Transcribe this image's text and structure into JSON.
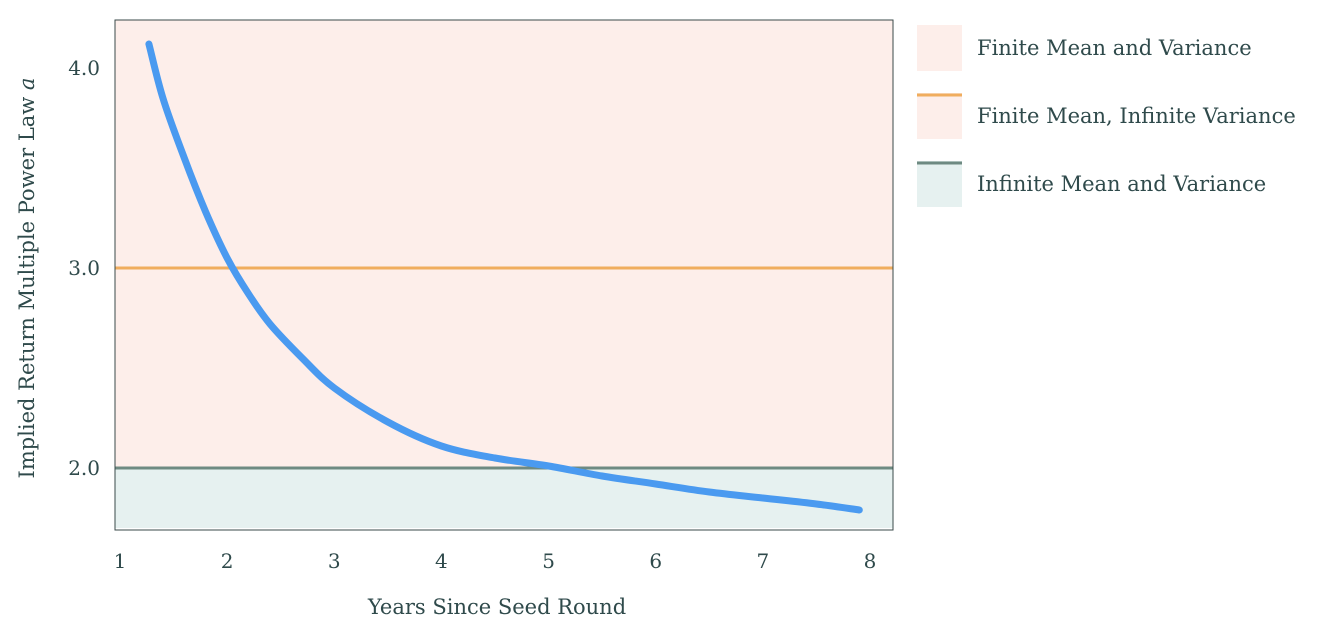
{
  "chart_data": {
    "type": "line",
    "xlabel": "Years Since Seed Round",
    "ylabel": "Implied Return Multiple Power Law a",
    "ylabel_main": "Implied Return Multiple Power Law ",
    "ylabel_symbol": "a",
    "xlim": [
      1,
      8.2
    ],
    "ylim": [
      1.7,
      4.25
    ],
    "xticks": [
      "1",
      "2",
      "3",
      "4",
      "5",
      "6",
      "7",
      "8"
    ],
    "yticks": [
      "2.0",
      "3.0",
      "4.0"
    ],
    "grid": false,
    "legend_position": "right",
    "regions": [
      {
        "name": "Finite Mean and Variance",
        "y_from": 2.0,
        "y_to": 4.25,
        "color": "#fdeeea"
      },
      {
        "name": "Infinite Mean and Variance",
        "y_from": 1.7,
        "y_to": 2.0,
        "color": "#e6f1f0"
      }
    ],
    "reference_lines": [
      {
        "name": "Finite Mean, Infinite Variance",
        "y": 3.0,
        "color": "#f0ad5e"
      },
      {
        "name": "Infinite Mean and Variance boundary",
        "y": 2.0,
        "color": "#6e8a82"
      }
    ],
    "series": [
      {
        "color": "#4a9af0",
        "x": [
          1.27,
          1.4,
          1.6,
          1.8,
          2.0,
          2.2,
          2.4,
          2.7,
          3.0,
          3.5,
          4.0,
          4.5,
          5.0,
          5.5,
          6.0,
          6.5,
          7.0,
          7.5,
          7.9
        ],
        "y": [
          4.12,
          3.85,
          3.55,
          3.28,
          3.05,
          2.87,
          2.72,
          2.55,
          2.4,
          2.23,
          2.11,
          2.05,
          2.01,
          1.96,
          1.92,
          1.88,
          1.85,
          1.82,
          1.79
        ]
      }
    ]
  },
  "legend": [
    {
      "label": "Finite Mean and Variance",
      "swatch": "box",
      "color": "#fdeeea"
    },
    {
      "label": "Finite Mean, Infinite Variance",
      "swatch": "box-line",
      "color": "#fdeeea",
      "line_color": "#f0ad5e"
    },
    {
      "label": "Infinite Mean and Variance",
      "swatch": "box-line",
      "color": "#e6f1f0",
      "line_color": "#6e8a82"
    }
  ]
}
